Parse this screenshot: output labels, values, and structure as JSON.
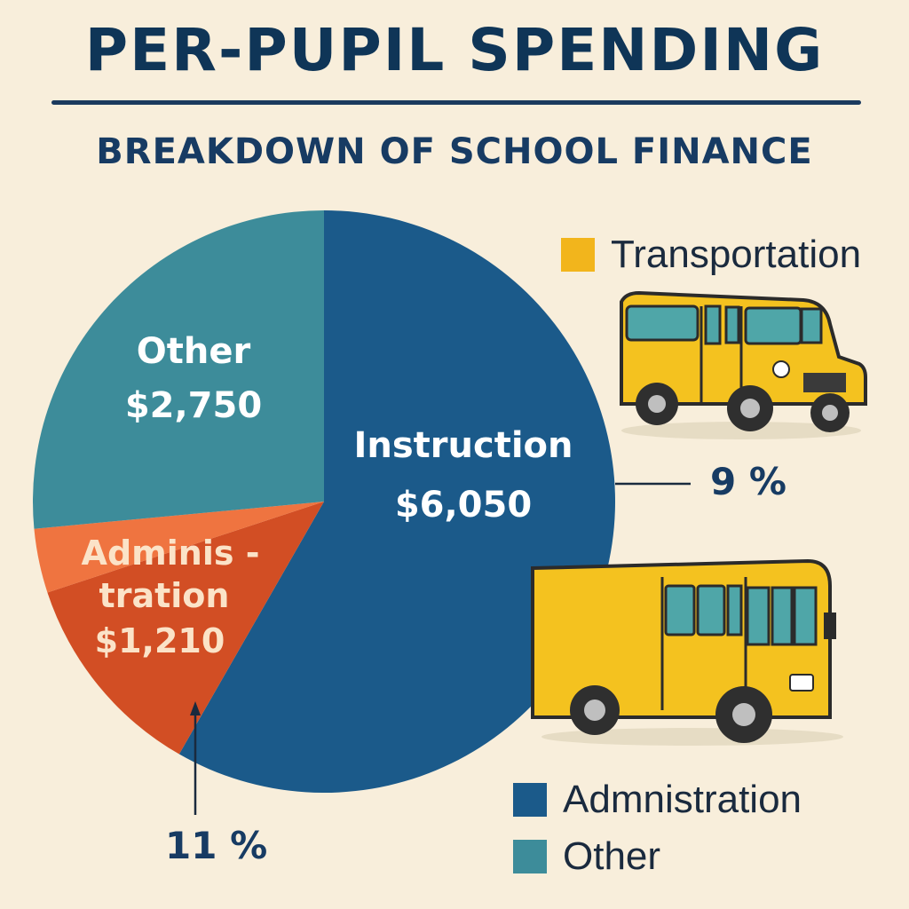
{
  "title": "PER-PUPIL SPENDING",
  "subtitle": "BREAKDOWN OF SCHOOL FINANCE",
  "chart_data": {
    "type": "pie",
    "slices": [
      {
        "label": "Instruction",
        "value_label": "$6,050",
        "value": 6050,
        "color": "#1b5a8a"
      },
      {
        "label": "Adminis -",
        "label2": "tration",
        "value_label": "$1,210",
        "value": 1210,
        "color": "#d24e24"
      },
      {
        "label": "",
        "value_label": "",
        "value": 370,
        "color": "#ef7440"
      },
      {
        "label": "Other",
        "value_label": "$2,750",
        "value": 2750,
        "color": "#3d8c9a"
      }
    ],
    "annotations": {
      "right_percent": "9 %",
      "bottom_percent": "11 %"
    },
    "legend": [
      {
        "label": "Transportation",
        "color": "#f2b51c",
        "position": "top-right"
      },
      {
        "label": "Admnistration",
        "color": "#1b5a8a",
        "position": "bottom-right"
      },
      {
        "label": "Other",
        "color": "#3d8c9a",
        "position": "bottom-right"
      }
    ]
  }
}
